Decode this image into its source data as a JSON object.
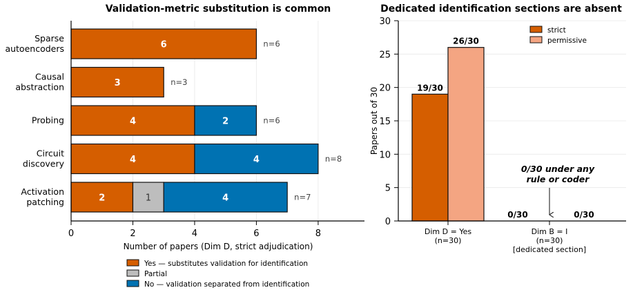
{
  "chart_data": [
    {
      "type": "bar",
      "orientation": "horizontal",
      "stacked": true,
      "title": "Validation-metric substitution is common",
      "xlabel": "Number of papers (Dim D, strict adjudication)",
      "ylabel": "",
      "xlim": [
        0,
        9.5
      ],
      "xticks": [
        "0",
        "2",
        "4",
        "6",
        "8"
      ],
      "grid": "vertical",
      "categories": [
        [
          "Sparse",
          "autoencoders"
        ],
        [
          "Causal",
          "abstraction"
        ],
        [
          "Probing"
        ],
        [
          "Circuit",
          "discovery"
        ],
        [
          "Activation",
          "patching"
        ]
      ],
      "n_labels": [
        "n=6",
        "n=3",
        "n=6",
        "n=8",
        "n=7"
      ],
      "series": [
        {
          "name": "Yes — substitutes validation for identification",
          "color": "#d55e00",
          "label_color": "#ffffff",
          "values": [
            6,
            3,
            4,
            4,
            2
          ]
        },
        {
          "name": "Partial",
          "color": "#bdbdbd",
          "label_color": "#333333",
          "values": [
            0,
            0,
            0,
            0,
            1
          ]
        },
        {
          "name": "No — validation separated from identification",
          "color": "#0072b2",
          "label_color": "#ffffff",
          "values": [
            0,
            0,
            2,
            4,
            4
          ]
        }
      ],
      "legend_position": "bottom"
    },
    {
      "type": "bar",
      "title": "Dedicated identification sections are absent",
      "xlabel": "",
      "ylabel": "Papers out of 30",
      "ylim": [
        0,
        30
      ],
      "yticks": [
        "0",
        "5",
        "10",
        "15",
        "20",
        "25",
        "30"
      ],
      "grid": "horizontal",
      "categories": [
        [
          "Dim D = Yes",
          "(n=30)"
        ],
        [
          "Dim B = I",
          "(n=30)",
          "[dedicated section]"
        ]
      ],
      "series": [
        {
          "name": "strict",
          "color": "#d55e00",
          "values": [
            19,
            0
          ],
          "labels": [
            "19/30",
            "0/30"
          ]
        },
        {
          "name": "permissive",
          "color": "#f4a582",
          "values": [
            26,
            0
          ],
          "labels": [
            "26/30",
            "0/30"
          ]
        }
      ],
      "legend_position": "top-right",
      "annotation": [
        "0/30 under any",
        "rule or coder"
      ]
    }
  ]
}
